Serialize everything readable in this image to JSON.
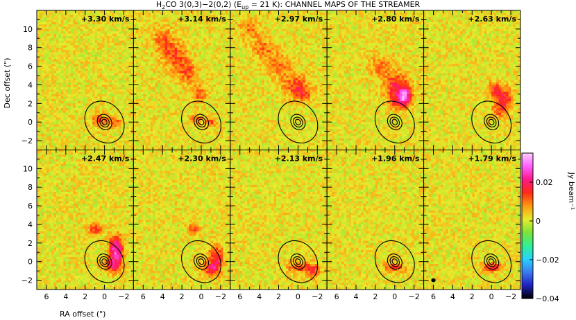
{
  "chart_data": {
    "type": "heatmap",
    "title": {
      "prefix": "H",
      "sub": "2",
      "mid": "CO 3(0,3)−2(0,2) (E",
      "esub": "up",
      "suffix": " = 21 K): CHANNEL MAPS OF THE STREAMER"
    },
    "xlabel": "RA offset (\")",
    "ylabel": "Dec offset (\")",
    "xlim": [
      7,
      -3
    ],
    "ylim": [
      -3,
      12
    ],
    "xticks": [
      "6",
      "4",
      "2",
      "0",
      "−2"
    ],
    "xtick_values": [
      6,
      4,
      2,
      0,
      -2
    ],
    "yticks": [
      "−2",
      "0",
      "2",
      "4",
      "6",
      "8",
      "10"
    ],
    "ytick_values": [
      -2,
      0,
      2,
      4,
      6,
      8,
      10
    ],
    "layout": {
      "rows": 2,
      "cols": 5
    },
    "panels": [
      {
        "velocity": "+3.30 km/s",
        "emission": [
          {
            "x": 0.6,
            "y": 0.2,
            "amp": 0.012,
            "sx": 0.5,
            "sy": 0.5
          },
          {
            "x": -1.0,
            "y": 0.0,
            "amp": 0.01,
            "sx": 0.5,
            "sy": 0.4
          }
        ]
      },
      {
        "velocity": "+3.14 km/s",
        "emission": [
          {
            "x": 4.0,
            "y": 9.0,
            "amp": 0.009,
            "sx": 0.8,
            "sy": 0.8
          },
          {
            "x": 3.0,
            "y": 7.5,
            "amp": 0.01,
            "sx": 0.9,
            "sy": 0.8
          },
          {
            "x": 2.0,
            "y": 6.0,
            "amp": 0.009,
            "sx": 0.8,
            "sy": 0.8
          },
          {
            "x": 1.2,
            "y": 5.0,
            "amp": 0.008,
            "sx": 0.6,
            "sy": 0.7
          },
          {
            "x": 0.2,
            "y": 3.0,
            "amp": 0.011,
            "sx": 0.6,
            "sy": 0.6
          },
          {
            "x": 0.6,
            "y": 0.2,
            "amp": 0.012,
            "sx": 0.4,
            "sy": 0.4
          },
          {
            "x": -1.0,
            "y": 0.0,
            "amp": 0.01,
            "sx": 0.4,
            "sy": 0.4
          }
        ]
      },
      {
        "velocity": "+2.97 km/s",
        "emission": [
          {
            "x": 5.0,
            "y": 10.0,
            "amp": 0.008,
            "sx": 0.8,
            "sy": 0.7
          },
          {
            "x": 3.5,
            "y": 8.0,
            "amp": 0.008,
            "sx": 0.9,
            "sy": 0.8
          },
          {
            "x": 2.0,
            "y": 6.0,
            "amp": 0.008,
            "sx": 0.9,
            "sy": 0.9
          },
          {
            "x": 0.2,
            "y": 4.0,
            "amp": 0.011,
            "sx": 0.9,
            "sy": 0.8
          },
          {
            "x": -0.5,
            "y": 3.0,
            "amp": 0.009,
            "sx": 0.8,
            "sy": 0.6
          }
        ]
      },
      {
        "velocity": "+2.80 km/s",
        "emission": [
          {
            "x": 1.5,
            "y": 6.0,
            "amp": 0.008,
            "sx": 0.8,
            "sy": 0.8
          },
          {
            "x": -0.2,
            "y": 3.8,
            "amp": 0.016,
            "sx": 0.9,
            "sy": 1.0
          },
          {
            "x": -1.0,
            "y": 2.8,
            "amp": 0.022,
            "sx": 0.5,
            "sy": 0.6
          },
          {
            "x": -0.4,
            "y": 2.0,
            "amp": 0.011,
            "sx": 0.7,
            "sy": 0.5
          }
        ]
      },
      {
        "velocity": "+2.63 km/s",
        "emission": [
          {
            "x": -0.3,
            "y": 3.4,
            "amp": 0.012,
            "sx": 0.5,
            "sy": 0.6
          },
          {
            "x": -1.3,
            "y": 2.4,
            "amp": 0.015,
            "sx": 0.6,
            "sy": 0.9
          },
          {
            "x": -0.8,
            "y": 1.2,
            "amp": 0.008,
            "sx": 0.5,
            "sy": 0.5
          }
        ]
      },
      {
        "velocity": "+2.47 km/s",
        "emission": [
          {
            "x": 1.0,
            "y": 3.5,
            "amp": 0.013,
            "sx": 0.5,
            "sy": 0.5
          },
          {
            "x": -1.2,
            "y": 1.2,
            "amp": 0.025,
            "sx": 0.5,
            "sy": 1.1
          },
          {
            "x": -0.8,
            "y": -0.5,
            "amp": 0.012,
            "sx": 0.6,
            "sy": 0.5
          }
        ]
      },
      {
        "velocity": "+2.30 km/s",
        "emission": [
          {
            "x": 0.8,
            "y": 3.5,
            "amp": 0.012,
            "sx": 0.4,
            "sy": 0.5
          },
          {
            "x": -1.5,
            "y": 0.5,
            "amp": 0.016,
            "sx": 0.5,
            "sy": 0.9
          },
          {
            "x": -1.0,
            "y": -0.8,
            "amp": 0.014,
            "sx": 0.7,
            "sy": 0.5
          }
        ]
      },
      {
        "velocity": "+2.13 km/s",
        "emission": [
          {
            "x": -0.2,
            "y": -0.6,
            "amp": 0.012,
            "sx": 0.9,
            "sy": 0.4
          },
          {
            "x": -1.6,
            "y": -1.0,
            "amp": 0.012,
            "sx": 0.5,
            "sy": 0.5
          }
        ]
      },
      {
        "velocity": "+1.96 km/s",
        "emission": [
          {
            "x": 0.0,
            "y": -0.6,
            "amp": 0.011,
            "sx": 0.8,
            "sy": 0.35
          }
        ]
      },
      {
        "velocity": "+1.79 km/s",
        "emission": [
          {
            "x": 0.0,
            "y": -0.6,
            "amp": 0.016,
            "sx": 0.7,
            "sy": 0.35
          }
        ]
      }
    ],
    "continuum": {
      "x": 0,
      "y": 0,
      "levels": [
        0.25,
        0.45,
        0.7,
        1.9
      ],
      "rings": 4
    },
    "beam": {
      "x": 6.0,
      "y": -2.0,
      "panel": 9
    },
    "colorbar": {
      "label": "Jy beam⁻¹",
      "range": [
        -0.04,
        0.035
      ],
      "ticks": [
        "0.02",
        "0",
        "−0.02",
        "−0.04"
      ],
      "tick_values": [
        0.02,
        0,
        -0.02,
        -0.04
      ],
      "colors": [
        "#000000",
        "#2020c0",
        "#3a7cf0",
        "#28d4ff",
        "#30f090",
        "#7ee23a",
        "#e7ec2c",
        "#ff9a10",
        "#ff2a14",
        "#ff1888",
        "#ff60ff",
        "#ffd0ff"
      ]
    }
  }
}
